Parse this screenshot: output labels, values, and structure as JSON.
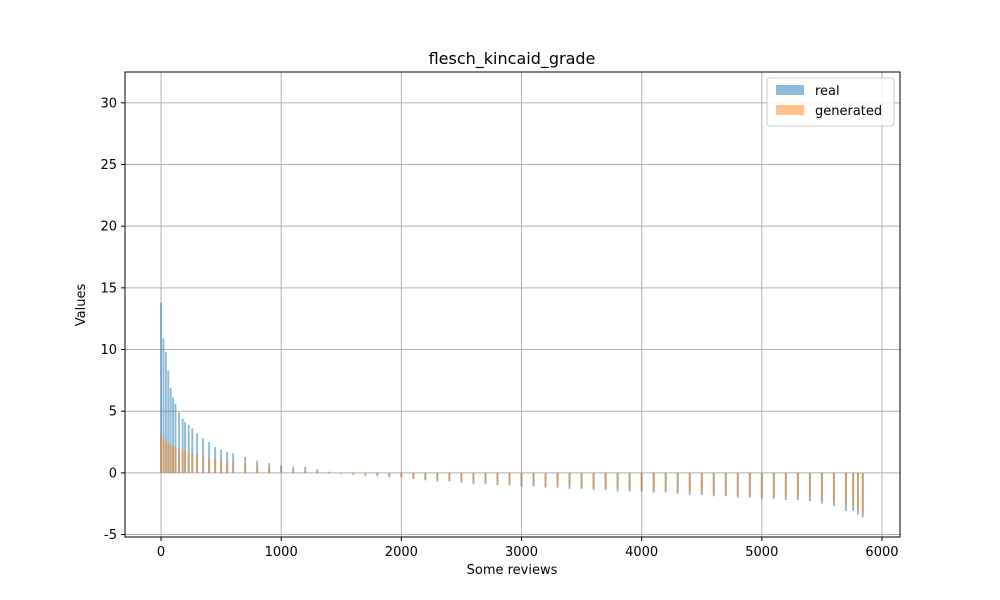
{
  "chart_data": {
    "type": "bar",
    "title": "flesch_kincaid_grade",
    "xlabel": "Some reviews",
    "ylabel": "Values",
    "xlim": [
      -300,
      6150
    ],
    "ylim": [
      -5.2,
      32.5
    ],
    "xticks": [
      0,
      1000,
      2000,
      3000,
      4000,
      5000,
      6000
    ],
    "yticks": [
      -5,
      0,
      5,
      10,
      15,
      20,
      25,
      30
    ],
    "grid": true,
    "legend_position": "top-right",
    "bar_spacing": 20,
    "series": [
      {
        "name": "real",
        "color": "#1f77b4",
        "alpha": 0.5,
        "x": [
          0,
          20,
          40,
          60,
          80,
          100,
          120,
          150,
          180,
          200,
          230,
          260,
          300,
          350,
          400,
          450,
          500,
          550,
          600,
          700,
          800,
          900,
          1000,
          1100,
          1200,
          1300,
          1400,
          1500,
          1600,
          1700,
          1800,
          1900,
          2000,
          2100,
          2200,
          2300,
          2400,
          2500,
          2600,
          2700,
          2800,
          2900,
          3000,
          3100,
          3200,
          3300,
          3400,
          3500,
          3600,
          3700,
          3800,
          3900,
          4000,
          4100,
          4200,
          4300,
          4400,
          4500,
          4600,
          4700,
          4800,
          4900,
          5000,
          5100,
          5200,
          5300,
          5400,
          5500,
          5600,
          5700,
          5760,
          5800,
          5840
        ],
        "values": [
          13.8,
          10.9,
          9.8,
          8.3,
          6.9,
          6.1,
          5.6,
          4.9,
          4.4,
          4.1,
          3.9,
          3.6,
          3.2,
          2.8,
          2.5,
          2.1,
          1.9,
          1.7,
          1.6,
          1.3,
          1.0,
          0.8,
          0.6,
          0.5,
          0.5,
          0.3,
          0.1,
          0.0,
          -0.1,
          -0.1,
          -0.2,
          -0.3,
          -0.3,
          -0.5,
          -0.6,
          -0.7,
          -0.7,
          -0.8,
          -0.9,
          -0.9,
          -1.0,
          -1.0,
          -1.1,
          -1.1,
          -1.2,
          -1.2,
          -1.3,
          -1.3,
          -1.4,
          -1.4,
          -1.5,
          -1.5,
          -1.5,
          -1.6,
          -1.6,
          -1.7,
          -1.8,
          -1.8,
          -1.9,
          -1.9,
          -2.0,
          -2.0,
          -2.1,
          -2.1,
          -2.2,
          -2.2,
          -2.3,
          -2.5,
          -2.7,
          -3.1,
          -3.1,
          -3.4,
          -3.6
        ]
      },
      {
        "name": "generated",
        "color": "#ff7f0e",
        "alpha": 0.5,
        "x": [
          0,
          20,
          40,
          60,
          80,
          100,
          120,
          150,
          180,
          200,
          230,
          260,
          300,
          350,
          400,
          450,
          500,
          550,
          600,
          700,
          800,
          900,
          1000,
          1100,
          1200,
          1300,
          1400,
          1500,
          1600,
          1700,
          1800,
          1900,
          2000,
          2100,
          2200,
          2300,
          2400,
          2500,
          2600,
          2700,
          2800,
          2900,
          3000,
          3100,
          3200,
          3300,
          3400,
          3500,
          3600,
          3700,
          3800,
          3900,
          4000,
          4100,
          4200,
          4300,
          4400,
          4500,
          4600,
          4700,
          4800,
          4900,
          5000,
          5100,
          5200,
          5300,
          5400,
          5500,
          5600,
          5700,
          5760,
          5800,
          5840
        ],
        "values": [
          3.1,
          2.8,
          2.6,
          2.4,
          2.3,
          2.2,
          2.1,
          2.0,
          1.9,
          1.8,
          1.7,
          1.6,
          1.5,
          1.4,
          1.2,
          1.1,
          1.0,
          0.9,
          0.9,
          0.8,
          0.6,
          0.5,
          0.4,
          0.3,
          0.2,
          0.1,
          0.0,
          -0.1,
          -0.2,
          -0.3,
          -0.3,
          -0.4,
          -0.4,
          -0.5,
          -0.6,
          -0.6,
          -0.7,
          -0.7,
          -0.8,
          -0.8,
          -0.9,
          -0.9,
          -1.0,
          -1.0,
          -1.1,
          -1.1,
          -1.1,
          -1.2,
          -1.2,
          -1.3,
          -1.3,
          -1.4,
          -1.4,
          -1.5,
          -1.5,
          -1.6,
          -1.6,
          -1.7,
          -1.7,
          -1.8,
          -1.8,
          -1.9,
          -1.9,
          -2.0,
          -2.0,
          -2.1,
          -2.2,
          -2.3,
          -2.4,
          -2.6,
          -2.7,
          -3.0,
          -3.4
        ]
      }
    ]
  }
}
